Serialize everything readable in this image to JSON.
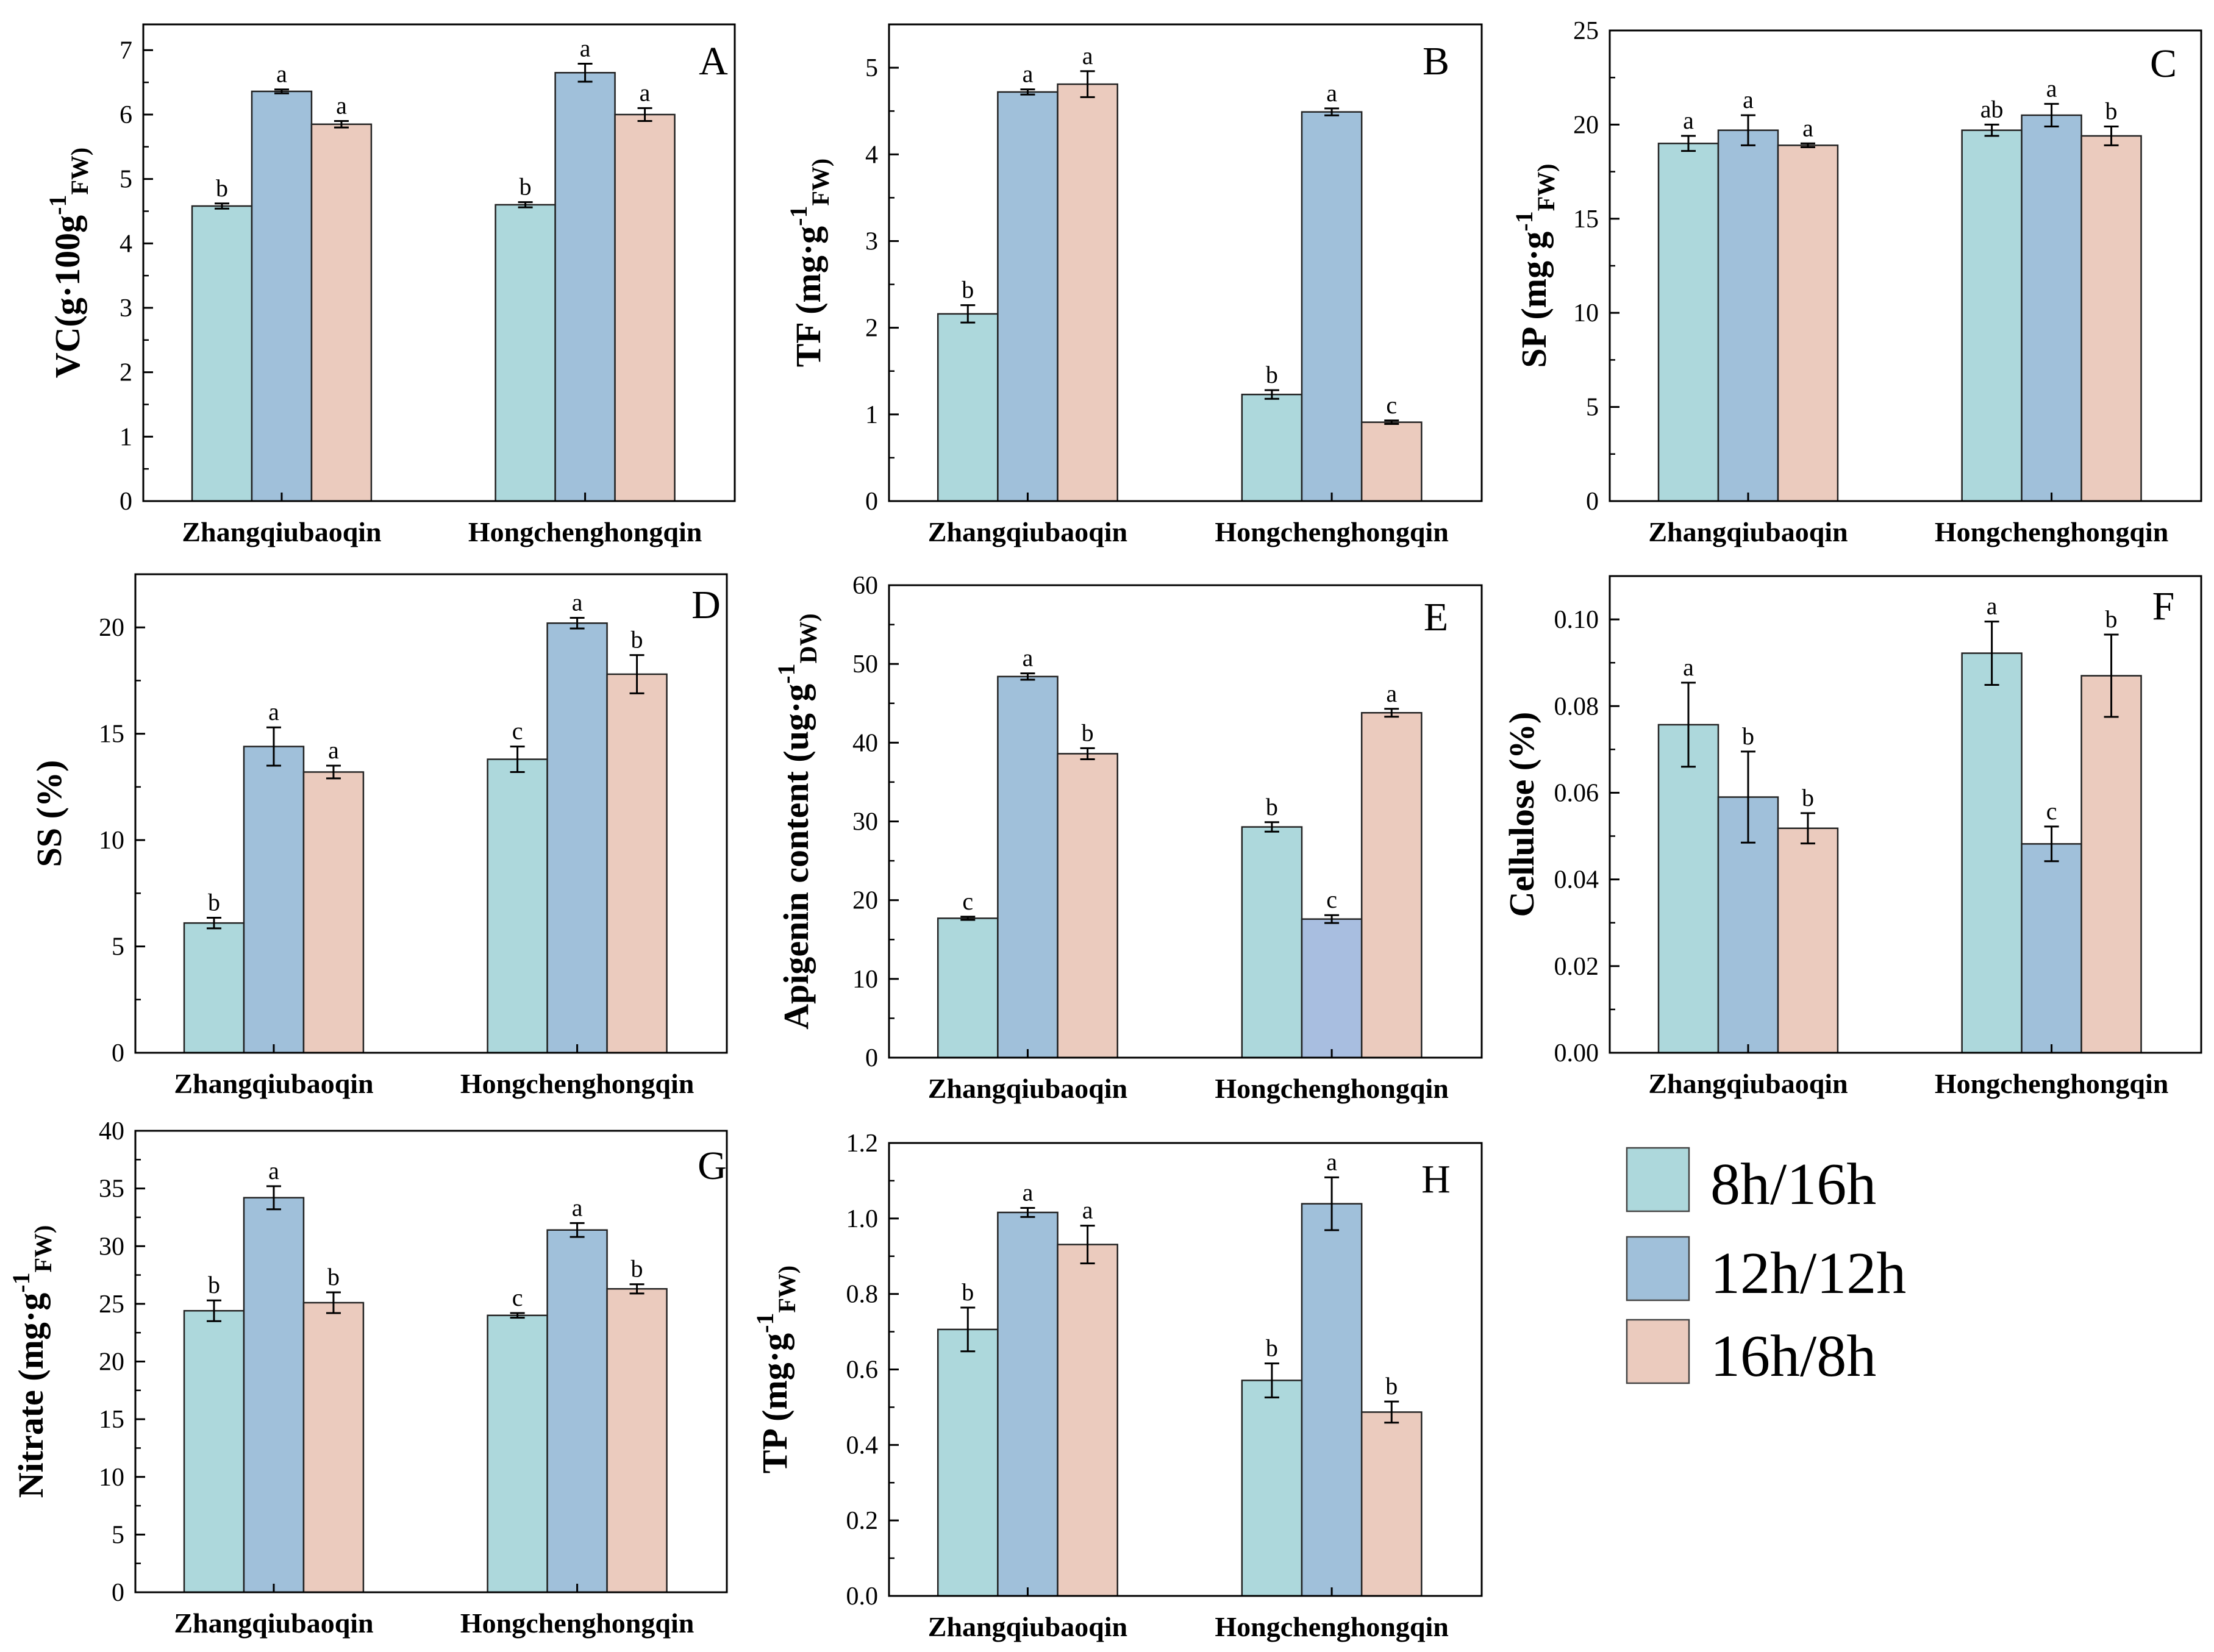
{
  "colors": {
    "s1": "#add8dc",
    "s2": "#a0c0da",
    "s3": "#ebcbbe",
    "s2_alt": "#a8bee0"
  },
  "legend": {
    "entries": [
      "8h/16h",
      "12h/12h",
      "16h/8h"
    ]
  },
  "chart_data": [
    {
      "panel": "A",
      "type": "bar",
      "ylabel_main": "VC(g·100g",
      "ylabel_sup": "-1",
      "ylabel_sub": "FW)",
      "ylim": [
        0,
        7.4
      ],
      "yticks": [
        "0",
        "1",
        "2",
        "3",
        "4",
        "5",
        "6",
        "7"
      ],
      "ytick_values": [
        0,
        1,
        2,
        3,
        4,
        5,
        6,
        7
      ],
      "categories": [
        "Zhangqiubaoqin",
        "Hongchenghongqin"
      ],
      "series": [
        {
          "name": "8h/16h",
          "values": [
            4.58,
            4.6
          ],
          "errors": [
            0.04,
            0.04
          ],
          "letters": [
            "b",
            "b"
          ]
        },
        {
          "name": "12h/12h",
          "values": [
            6.36,
            6.65
          ],
          "errors": [
            0.03,
            0.14
          ],
          "letters": [
            "a",
            "a"
          ]
        },
        {
          "name": "16h/8h",
          "values": [
            5.85,
            6.0
          ],
          "errors": [
            0.05,
            0.1
          ],
          "letters": [
            "a",
            "a"
          ]
        }
      ]
    },
    {
      "panel": "B",
      "type": "bar",
      "ylabel_main": "TF (mg·g",
      "ylabel_sup": "-1",
      "ylabel_sub": "FW)",
      "ylim": [
        0,
        5.5
      ],
      "yticks": [
        "0",
        "1",
        "2",
        "3",
        "4",
        "5"
      ],
      "ytick_values": [
        0,
        1,
        2,
        3,
        4,
        5
      ],
      "categories": [
        "Zhangqiubaoqin",
        "Hongchenghongqin"
      ],
      "series": [
        {
          "name": "8h/16h",
          "values": [
            2.16,
            1.23
          ],
          "errors": [
            0.1,
            0.05
          ],
          "letters": [
            "b",
            "b"
          ]
        },
        {
          "name": "12h/12h",
          "values": [
            4.72,
            4.49
          ],
          "errors": [
            0.03,
            0.04
          ],
          "letters": [
            "a",
            "a"
          ]
        },
        {
          "name": "16h/8h",
          "values": [
            4.81,
            0.91
          ],
          "errors": [
            0.15,
            0.02
          ],
          "letters": [
            "a",
            "c"
          ]
        }
      ]
    },
    {
      "panel": "C",
      "type": "bar",
      "ylabel_main": "SP (mg·g",
      "ylabel_sup": "-1",
      "ylabel_sub": "FW)",
      "ylim": [
        0,
        25
      ],
      "yticks": [
        "0",
        "5",
        "10",
        "15",
        "20",
        "25"
      ],
      "ytick_values": [
        0,
        5,
        10,
        15,
        20,
        25
      ],
      "categories": [
        "Zhangqiubaoqin",
        "Hongchenghongqin"
      ],
      "series": [
        {
          "name": "8h/16h",
          "values": [
            19.0,
            19.7
          ],
          "errors": [
            0.4,
            0.3
          ],
          "letters": [
            "a",
            "ab"
          ]
        },
        {
          "name": "12h/12h",
          "values": [
            19.7,
            20.5
          ],
          "errors": [
            0.8,
            0.6
          ],
          "letters": [
            "a",
            "a"
          ]
        },
        {
          "name": "16h/8h",
          "values": [
            18.9,
            19.4
          ],
          "errors": [
            0.1,
            0.5
          ],
          "letters": [
            "a",
            "b"
          ]
        }
      ]
    },
    {
      "panel": "D",
      "type": "bar",
      "ylabel_main": "SS (%)",
      "ylabel_sup": "",
      "ylabel_sub": "",
      "ylim": [
        0,
        22.5
      ],
      "yticks": [
        "0",
        "5",
        "10",
        "15",
        "20"
      ],
      "ytick_values": [
        0,
        5,
        10,
        15,
        20
      ],
      "categories": [
        "Zhangqiubaoqin",
        "Hongchenghongqin"
      ],
      "series": [
        {
          "name": "8h/16h",
          "values": [
            6.1,
            13.8
          ],
          "errors": [
            0.25,
            0.6
          ],
          "letters": [
            "b",
            "c"
          ]
        },
        {
          "name": "12h/12h",
          "values": [
            14.4,
            20.2
          ],
          "errors": [
            0.9,
            0.25
          ],
          "letters": [
            "a",
            "a"
          ]
        },
        {
          "name": "16h/8h",
          "values": [
            13.2,
            17.8
          ],
          "errors": [
            0.3,
            0.9
          ],
          "letters": [
            "a",
            "b"
          ]
        }
      ]
    },
    {
      "panel": "E",
      "type": "bar",
      "ylabel_main": "Apigenin content (ug·g",
      "ylabel_sup": "-1",
      "ylabel_sub": "DW)",
      "ylim": [
        0,
        60
      ],
      "yticks": [
        "0",
        "10",
        "20",
        "30",
        "40",
        "50",
        "60"
      ],
      "ytick_values": [
        0,
        10,
        20,
        30,
        40,
        50,
        60
      ],
      "categories": [
        "Zhangqiubaoqin",
        "Hongchenghongqin"
      ],
      "series": [
        {
          "name": "8h/16h",
          "values": [
            17.7,
            29.3
          ],
          "errors": [
            0.2,
            0.6
          ],
          "letters": [
            "c",
            "b"
          ]
        },
        {
          "name": "12h/12h",
          "values": [
            48.4,
            17.6
          ],
          "errors": [
            0.4,
            0.5
          ],
          "letters": [
            "a",
            "c"
          ]
        },
        {
          "name": "16h/8h",
          "values": [
            38.6,
            43.8
          ],
          "errors": [
            0.7,
            0.5
          ],
          "letters": [
            "b",
            "a"
          ]
        }
      ]
    },
    {
      "panel": "F",
      "type": "bar",
      "ylabel_main": "Cellulose (%)",
      "ylabel_sup": "",
      "ylabel_sub": "",
      "ylim": [
        0,
        0.11
      ],
      "yticks": [
        "0.00",
        "0.02",
        "0.04",
        "0.06",
        "0.08",
        "0.10"
      ],
      "ytick_values": [
        0,
        0.02,
        0.04,
        0.06,
        0.08,
        0.1
      ],
      "categories": [
        "Zhangqiubaoqin",
        "Hongchenghongqin"
      ],
      "series": [
        {
          "name": "8h/16h",
          "values": [
            0.0757,
            0.0922
          ],
          "errors": [
            0.0097,
            0.0073
          ],
          "letters": [
            "a",
            "a"
          ]
        },
        {
          "name": "12h/12h",
          "values": [
            0.059,
            0.0482
          ],
          "errors": [
            0.0105,
            0.004
          ],
          "letters": [
            "b",
            "c"
          ]
        },
        {
          "name": "16h/8h",
          "values": [
            0.0518,
            0.087
          ],
          "errors": [
            0.0035,
            0.0095
          ],
          "letters": [
            "b",
            "b"
          ]
        }
      ]
    },
    {
      "panel": "G",
      "type": "bar",
      "ylabel_main": "Nitrate (mg·g",
      "ylabel_sup": "-1",
      "ylabel_sub": "FW)",
      "ylim": [
        0,
        40
      ],
      "yticks": [
        "0",
        "5",
        "10",
        "15",
        "20",
        "25",
        "30",
        "35",
        "40"
      ],
      "ytick_values": [
        0,
        5,
        10,
        15,
        20,
        25,
        30,
        35,
        40
      ],
      "categories": [
        "Zhangqiubaoqin",
        "Hongchenghongqin"
      ],
      "series": [
        {
          "name": "8h/16h",
          "values": [
            24.4,
            24.0
          ],
          "errors": [
            0.9,
            0.2
          ],
          "letters": [
            "b",
            "c"
          ]
        },
        {
          "name": "12h/12h",
          "values": [
            34.2,
            31.4
          ],
          "errors": [
            1.0,
            0.6
          ],
          "letters": [
            "a",
            "a"
          ]
        },
        {
          "name": "16h/8h",
          "values": [
            25.1,
            26.3
          ],
          "errors": [
            0.9,
            0.4
          ],
          "letters": [
            "b",
            "b"
          ]
        }
      ]
    },
    {
      "panel": "H",
      "type": "bar",
      "ylabel_main": "TP (mg·g",
      "ylabel_sup": "-1",
      "ylabel_sub": "FW)",
      "ylim": [
        0,
        1.2
      ],
      "yticks": [
        "0.0",
        "0.2",
        "0.4",
        "0.6",
        "0.8",
        "1.0",
        "1.2"
      ],
      "ytick_values": [
        0,
        0.2,
        0.4,
        0.6,
        0.8,
        1.0,
        1.2
      ],
      "categories": [
        "Zhangqiubaoqin",
        "Hongchenghongqin"
      ],
      "series": [
        {
          "name": "8h/16h",
          "values": [
            0.706,
            0.571
          ],
          "errors": [
            0.058,
            0.045
          ],
          "letters": [
            "b",
            "b"
          ]
        },
        {
          "name": "12h/12h",
          "values": [
            1.016,
            1.039
          ],
          "errors": [
            0.012,
            0.07
          ],
          "letters": [
            "a",
            "a"
          ]
        },
        {
          "name": "16h/8h",
          "values": [
            0.931,
            0.487
          ],
          "errors": [
            0.05,
            0.028
          ],
          "letters": [
            "a",
            "b"
          ]
        }
      ]
    }
  ]
}
